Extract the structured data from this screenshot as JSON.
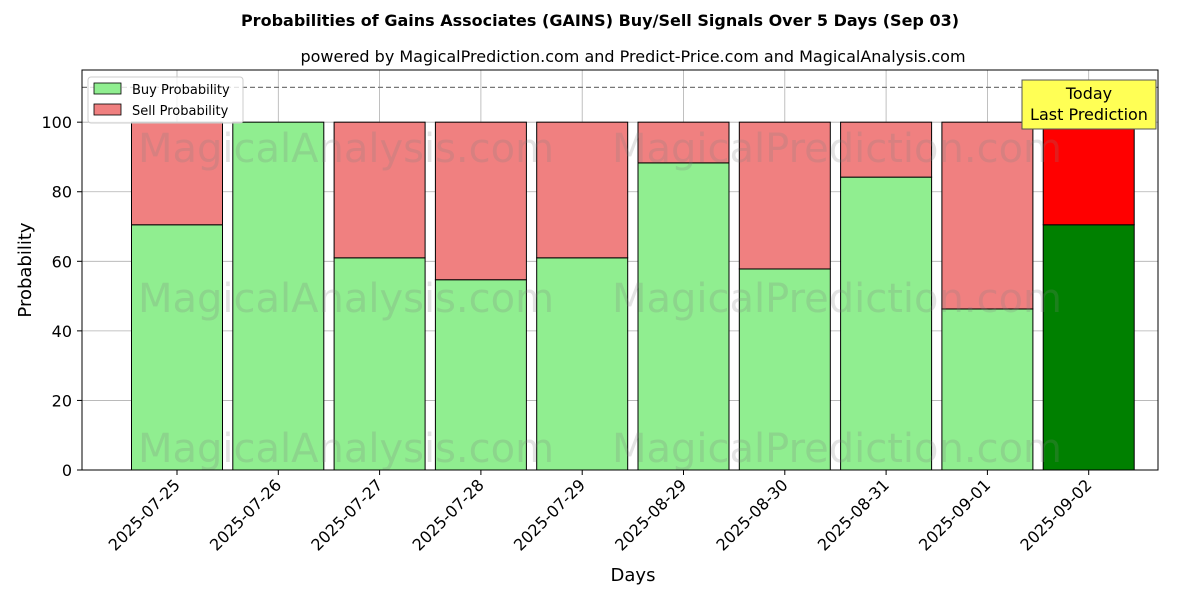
{
  "chart_data": {
    "type": "bar",
    "stacked": true,
    "title": "Probabilities of Gains Associates (GAINS) Buy/Sell Signals Over 5 Days (Sep 03)",
    "subtitle": "powered by MagicalPrediction.com and Predict-Price.com and MagicalAnalysis.com",
    "xlabel": "Days",
    "ylabel": "Probability",
    "ylim": [
      0,
      115
    ],
    "yticks": [
      0,
      20,
      40,
      60,
      80,
      100
    ],
    "reference_line": 110,
    "grid": true,
    "legend_position": "top-left",
    "categories": [
      "2025-07-25",
      "2025-07-26",
      "2025-07-27",
      "2025-07-28",
      "2025-07-29",
      "2025-08-29",
      "2025-08-30",
      "2025-08-31",
      "2025-09-01",
      "2025-09-02"
    ],
    "series": [
      {
        "name": "Buy Probability",
        "color": "#90ee90",
        "highlight_color": "#008000",
        "values": [
          70.5,
          100,
          61,
          54.7,
          61,
          88.3,
          57.8,
          84.2,
          46.3,
          70.5
        ]
      },
      {
        "name": "Sell Probability",
        "color": "#f08080",
        "highlight_color": "#ff0000",
        "values": [
          29.5,
          0,
          39,
          45.3,
          39,
          11.7,
          42.2,
          15.8,
          53.7,
          29.5
        ]
      }
    ],
    "highlight_index": 9,
    "annotation": {
      "line1": "Today",
      "line2": "Last Prediction",
      "bg_color": "#ffff55"
    },
    "watermarks": [
      "MagicalAnalysis.com",
      "MagicalPrediction.com"
    ]
  }
}
